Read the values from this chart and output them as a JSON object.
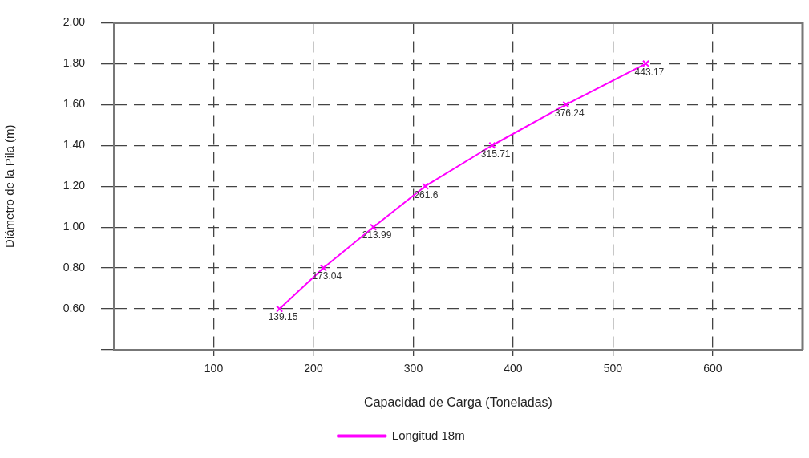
{
  "chart_data": {
    "type": "line",
    "xlabel": "Capacidad de Carga (Toneladas)",
    "ylabel": "Diámetro de la Pila (m)",
    "x": [
      166,
      210,
      260,
      312,
      379,
      453,
      533
    ],
    "series": [
      {
        "name": "Longitud 18m",
        "color": "#ff00ff",
        "values": [
          0.6,
          0.8,
          1.0,
          1.2,
          1.4,
          1.6,
          1.8
        ]
      }
    ],
    "xlim": [
      0,
      690
    ],
    "xticks": [
      100,
      200,
      300,
      400,
      500,
      600
    ],
    "ylim": [
      0.4,
      2.0
    ],
    "yticks": [
      {
        "value": 0.4,
        "label": null
      },
      {
        "value": 0.6,
        "label": "0.60"
      },
      {
        "value": 0.8,
        "label": "0.80"
      },
      {
        "value": 1.0,
        "label": "1.00"
      },
      {
        "value": 1.2,
        "label": "1.20"
      },
      {
        "value": 1.4,
        "label": "1.40"
      },
      {
        "value": 1.6,
        "label": "1.60"
      },
      {
        "value": 1.8,
        "label": "1.80"
      },
      {
        "value": 2.0,
        "label": "2.00"
      }
    ],
    "annotations": [
      {
        "text": "139.15",
        "x": 166,
        "y": 0.6
      },
      {
        "text": "173.04",
        "x": 210,
        "y": 0.8
      },
      {
        "text": "213.99",
        "x": 260,
        "y": 1.0
      },
      {
        "text": "261.6",
        "x": 312,
        "y": 1.2
      },
      {
        "text": "315.71",
        "x": 379,
        "y": 1.4
      },
      {
        "text": "376.24",
        "x": 453,
        "y": 1.6
      },
      {
        "text": "443.17",
        "x": 533,
        "y": 1.8
      }
    ],
    "grid": true,
    "legend": "bottom",
    "marker": "cross",
    "line_style": "solid"
  }
}
